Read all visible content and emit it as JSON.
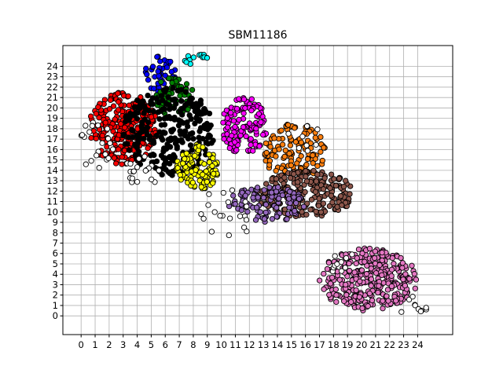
{
  "chart_data": {
    "type": "scatter",
    "title": "SBM11186",
    "xlabel": "",
    "ylabel": "",
    "xlim": [
      -1.3,
      26.5
    ],
    "ylim": [
      -1.8,
      26.0
    ],
    "x_ticks": [
      0,
      1,
      2,
      3,
      4,
      5,
      6,
      7,
      8,
      9,
      10,
      11,
      12,
      13,
      14,
      15,
      16,
      17,
      18,
      19,
      20,
      21,
      22,
      23,
      24
    ],
    "y_ticks": [
      0,
      1,
      2,
      3,
      4,
      5,
      6,
      7,
      8,
      9,
      10,
      11,
      12,
      13,
      14,
      15,
      16,
      17,
      18,
      19,
      20,
      21,
      22,
      23,
      24
    ],
    "grid": true,
    "series": [
      {
        "color": "#ff0000",
        "clusters": [
          {
            "x_range": [
              0.5,
              5.5
            ],
            "y_range": [
              14.5,
              21.5
            ],
            "n": 260
          }
        ]
      },
      {
        "color": "#0000ff",
        "clusters": [
          {
            "x_range": [
              4.5,
              6.8
            ],
            "y_range": [
              21.5,
              25.0
            ],
            "n": 45
          }
        ]
      },
      {
        "color": "#008000",
        "clusters": [
          {
            "x_range": [
              5.3,
              8.0
            ],
            "y_range": [
              19.0,
              23.2
            ],
            "n": 60
          }
        ]
      },
      {
        "color": "#000000",
        "clusters": [
          {
            "x_range": [
              3.0,
              9.5
            ],
            "y_range": [
              13.5,
              22.0
            ],
            "n": 260
          }
        ]
      },
      {
        "color": "#00ffff",
        "clusters": [
          {
            "x_range": [
              7.4,
              9.2
            ],
            "y_range": [
              24.0,
              25.2
            ],
            "n": 12
          }
        ]
      },
      {
        "color": "#ffff00",
        "clusters": [
          {
            "x_range": [
              6.8,
              9.8
            ],
            "y_range": [
              12.0,
              16.5
            ],
            "n": 120
          }
        ]
      },
      {
        "color": "#ff00ff",
        "clusters": [
          {
            "x_range": [
              10.0,
              13.3
            ],
            "y_range": [
              15.5,
              21.0
            ],
            "n": 130
          }
        ]
      },
      {
        "color": "#ff7f0e",
        "clusters": [
          {
            "x_range": [
              13.0,
              17.5
            ],
            "y_range": [
              13.0,
              18.5
            ],
            "n": 120
          }
        ]
      },
      {
        "color": "#8c564b",
        "clusters": [
          {
            "x_range": [
              12.5,
              19.5
            ],
            "y_range": [
              9.5,
              14.0
            ],
            "n": 240
          }
        ]
      },
      {
        "color": "#9467bd",
        "clusters": [
          {
            "x_range": [
              10.5,
              16.0
            ],
            "y_range": [
              9.0,
              12.5
            ],
            "n": 110
          }
        ]
      },
      {
        "color": "#e377c2",
        "clusters": [
          {
            "x_range": [
              17.0,
              24.0
            ],
            "y_range": [
              0.5,
              6.5
            ],
            "n": 320
          }
        ]
      },
      {
        "color": "#ffffff",
        "clusters": [
          {
            "x_range": [
              -0.2,
              2.5
            ],
            "y_range": [
              14.0,
              19.0
            ],
            "n": 22
          },
          {
            "x_range": [
              3.0,
              6.0
            ],
            "y_range": [
              12.5,
              15.5
            ],
            "n": 18
          },
          {
            "x_range": [
              8.5,
              12.5
            ],
            "y_range": [
              7.5,
              12.5
            ],
            "n": 20
          },
          {
            "x_range": [
              14.5,
              17.5
            ],
            "y_range": [
              15.5,
              18.5
            ],
            "n": 8
          },
          {
            "x_range": [
              17.0,
              19.5
            ],
            "y_range": [
              4.0,
              6.8
            ],
            "n": 10
          },
          {
            "x_range": [
              22.5,
              25.0
            ],
            "y_range": [
              0.0,
              2.0
            ],
            "n": 10
          }
        ]
      }
    ]
  }
}
